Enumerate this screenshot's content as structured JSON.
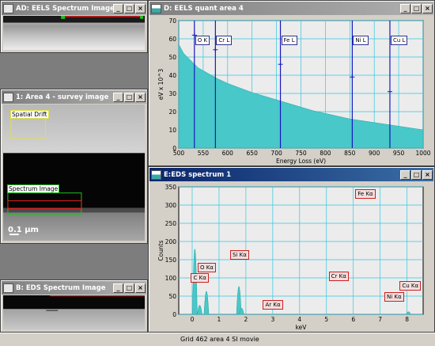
{
  "windows": {
    "eels_si": {
      "title": "AD: EELS Spectrum Image",
      "active": false
    },
    "survey": {
      "title": "1: Area 4 - survey image",
      "labels": {
        "spatial_drift": "Spatial Drift",
        "spectrum_image": "Spectrum Image"
      },
      "scale_bar": "0.1 µm"
    },
    "eds_si": {
      "title": "B: EDS Spectrum Image"
    },
    "eels_quant": {
      "title": "D: EELS quant area 4"
    },
    "eds_spectrum": {
      "title": "E:EDS spectrum 1"
    }
  },
  "titlebar_buttons": {
    "minimize": "_",
    "maximize": "□",
    "close": "×"
  },
  "status": {
    "text": "Grid 462 area 4 SI movie"
  },
  "colors": {
    "spectrum_fill": "#48c8c8",
    "marker_blue": "#1818c0",
    "grid_cyan": "#30c8e0",
    "label_red": "#cc2020"
  },
  "chart_data": [
    {
      "type": "area",
      "title": "D: EELS quant area 4",
      "xlabel": "Energy Loss (eV)",
      "ylabel": "eV x 10^3",
      "xlim": [
        500,
        1000
      ],
      "ylim": [
        0,
        70
      ],
      "x_ticks": [
        500,
        550,
        600,
        650,
        700,
        750,
        800,
        850,
        900,
        950,
        1000
      ],
      "y_ticks": [
        0,
        10,
        20,
        30,
        40,
        50,
        60,
        70
      ],
      "grid": true,
      "series": [
        {
          "x": [
            500,
            510,
            525,
            540,
            560,
            580,
            600,
            625,
            650,
            675,
            700,
            725,
            750,
            775,
            800,
            825,
            850,
            875,
            900,
            925,
            950,
            975,
            1000
          ],
          "values": [
            57,
            52,
            48,
            44,
            41,
            38,
            35.5,
            33,
            30.5,
            28.5,
            26.5,
            24.5,
            22.5,
            20.5,
            19,
            17.5,
            16,
            15,
            14,
            13,
            12,
            11,
            10
          ]
        }
      ],
      "edges": [
        {
          "label": "O K",
          "x": 532,
          "marker_y": 62
        },
        {
          "label": "Cr L",
          "x": 575,
          "marker_y": 54
        },
        {
          "label": "Fe L",
          "x": 708,
          "marker_y": 46
        },
        {
          "label": "Ni L",
          "x": 855,
          "marker_y": 39
        },
        {
          "label": "Cu L",
          "x": 932,
          "marker_y": 31
        }
      ]
    },
    {
      "type": "bar",
      "title": "E:EDS spectrum 1",
      "xlabel": "keV",
      "ylabel": "Counts",
      "xlim": [
        -0.5,
        8.6
      ],
      "ylim": [
        0,
        350
      ],
      "x_ticks": [
        0,
        1,
        2,
        3,
        4,
        5,
        6,
        7,
        8
      ],
      "y_ticks": [
        0,
        50,
        100,
        150,
        200,
        250,
        300,
        350
      ],
      "grid": true,
      "peaks": [
        {
          "x": 0.1,
          "value": 350
        },
        {
          "x": 0.28,
          "value": 42
        },
        {
          "x": 0.53,
          "value": 118
        },
        {
          "x": 1.74,
          "value": 145
        },
        {
          "x": 1.84,
          "value": 25
        },
        {
          "x": 8.05,
          "value": 6
        }
      ],
      "labels": [
        {
          "label": "Fe Kα",
          "x": 6.4,
          "y": 330
        },
        {
          "label": "Si Kα",
          "x": 1.74,
          "y": 162
        },
        {
          "label": "O Kα",
          "x": 0.53,
          "y": 128
        },
        {
          "label": "C Kα",
          "x": 0.28,
          "y": 100
        },
        {
          "label": "Cr Kα",
          "x": 5.41,
          "y": 105
        },
        {
          "label": "Cu Kα",
          "x": 8.05,
          "y": 78
        },
        {
          "label": "Ni Kα",
          "x": 7.48,
          "y": 47
        },
        {
          "label": "Ar Kα",
          "x": 2.96,
          "y": 27
        }
      ]
    }
  ]
}
